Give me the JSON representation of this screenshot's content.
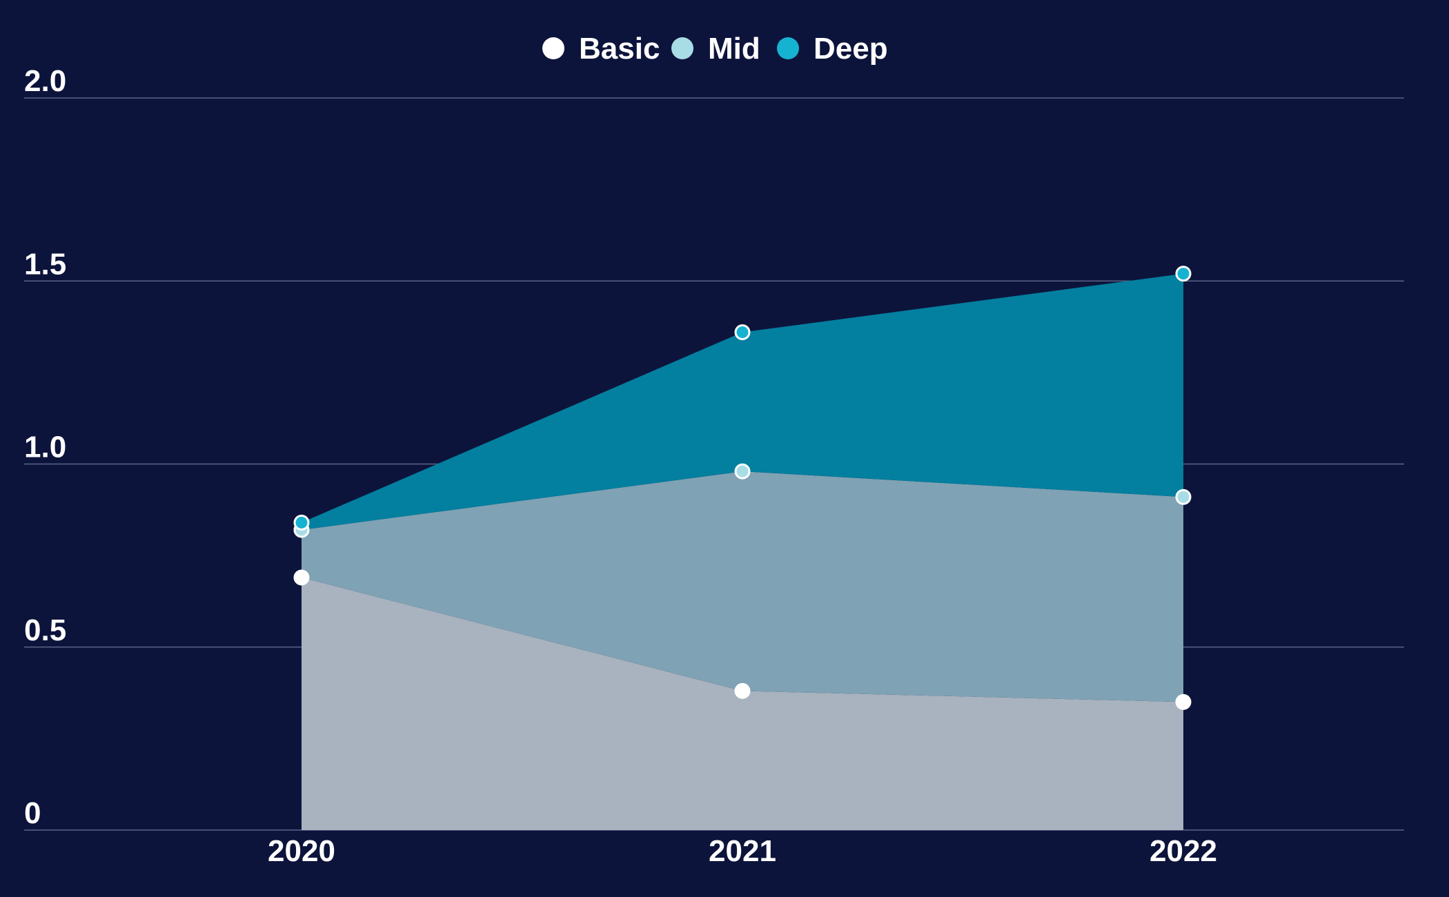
{
  "chart_data": {
    "type": "area",
    "stacked": true,
    "categories": [
      "2020",
      "2021",
      "2022"
    ],
    "series": [
      {
        "name": "Basic",
        "values": [
          0.69,
          0.38,
          0.35
        ],
        "color": "#ffffff",
        "fill": "#a8b3bf"
      },
      {
        "name": "Mid",
        "values": [
          0.13,
          0.6,
          0.56
        ],
        "color": "#a8dde6",
        "fill": "#7fa2b4"
      },
      {
        "name": "Deep",
        "values": [
          0.02,
          0.38,
          0.61
        ],
        "color": "#16b2d2",
        "fill": "#037f9f"
      }
    ],
    "ylim": [
      0,
      2.0
    ],
    "yticks": [
      "0",
      "0.5",
      "1.0",
      "1.5",
      "2.0"
    ],
    "ytick_values": [
      0,
      0.5,
      1.0,
      1.5,
      2.0
    ],
    "grid": true,
    "legend_position": "top-center"
  }
}
